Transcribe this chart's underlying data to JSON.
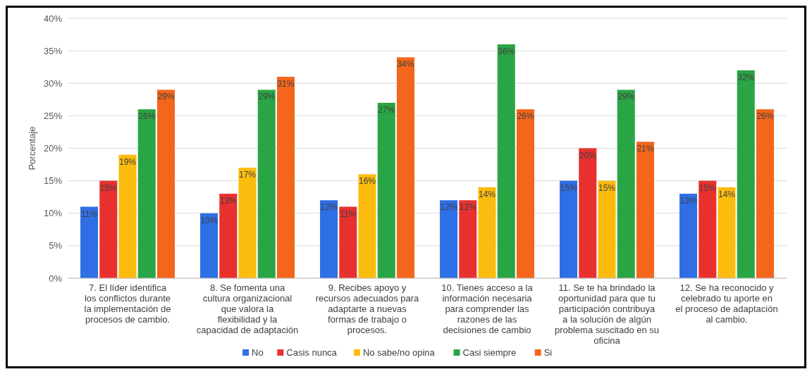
{
  "chart_data": {
    "type": "bar",
    "ylabel": "Porcentaje",
    "categories": [
      "7. El líder identifica los conflictos durante la implementación de procesos de cambio.",
      "8. Se fomenta una cultura organizacional que valora la flexibilidad y la capacidad de adaptación",
      "9. Recibes apoyo y recursos adecuados para adaptarte a nuevas formas de trabajo o procesos.",
      "10. Tienes acceso a la información necesaria para comprender las razones de las decisiones de cambio",
      "11. Se te ha brindado la oportunidad para que tu participación contribuya a la solución de algún problema suscitado en su oficina",
      "12. Se ha reconocido y celebrado tu aporte en el proceso de adaptación al cambio."
    ],
    "series": [
      {
        "name": "No",
        "color": "#2f6fe6",
        "values": [
          11,
          10,
          12,
          12,
          15,
          13
        ],
        "value_labels": [
          "11%",
          "10%",
          "12%",
          "12%",
          "15%",
          "13%"
        ]
      },
      {
        "name": "Casis nunca",
        "color": "#e8312f",
        "values": [
          15,
          13,
          11,
          12,
          20,
          15
        ],
        "value_labels": [
          "15%",
          "13%",
          "11%",
          "12%",
          "20%",
          "15%"
        ]
      },
      {
        "name": "No sabe/no opina",
        "color": "#fbbc0f",
        "values": [
          19,
          17,
          16,
          14,
          15,
          14
        ],
        "value_labels": [
          "19%",
          "17%",
          "16%",
          "14%",
          "15%",
          "14%"
        ]
      },
      {
        "name": "Casi siempre",
        "color": "#2aa545",
        "values": [
          26,
          29,
          27,
          36,
          29,
          32
        ],
        "value_labels": [
          "26%",
          "29%",
          "27%",
          "36%",
          "29%",
          "32%"
        ]
      },
      {
        "name": "Si",
        "color": "#f4661c",
        "values": [
          29,
          31,
          34,
          26,
          21,
          26
        ],
        "value_labels": [
          "29%",
          "31%",
          "34%",
          "26%",
          "21%",
          "26%"
        ]
      }
    ],
    "ylim": [
      0,
      40
    ],
    "yticks": [
      {
        "value": 0,
        "label": "0%"
      },
      {
        "value": 5,
        "label": "5%"
      },
      {
        "value": 10,
        "label": "10%"
      },
      {
        "value": 15,
        "label": "15%"
      },
      {
        "value": 20,
        "label": "20%"
      },
      {
        "value": 25,
        "label": "25%"
      },
      {
        "value": 30,
        "label": "30%"
      },
      {
        "value": 35,
        "label": "35%"
      },
      {
        "value": 40,
        "label": "40%"
      }
    ],
    "grid": "y",
    "legend": "bottom"
  }
}
